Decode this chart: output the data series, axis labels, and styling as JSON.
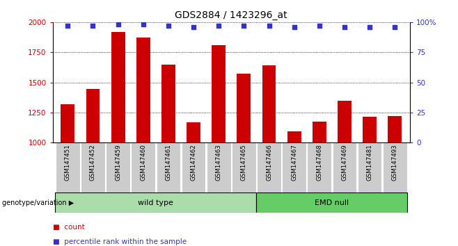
{
  "title": "GDS2884 / 1423296_at",
  "samples": [
    "GSM147451",
    "GSM147452",
    "GSM147459",
    "GSM147460",
    "GSM147461",
    "GSM147462",
    "GSM147463",
    "GSM147465",
    "GSM147466",
    "GSM147467",
    "GSM147468",
    "GSM147469",
    "GSM147481",
    "GSM147493"
  ],
  "counts": [
    1320,
    1445,
    1920,
    1870,
    1650,
    1170,
    1810,
    1575,
    1640,
    1095,
    1175,
    1345,
    1215,
    1220
  ],
  "percentile_ranks": [
    97,
    97,
    98,
    98,
    97,
    96,
    97,
    97,
    97,
    96,
    97,
    96,
    96,
    96
  ],
  "bar_color": "#cc0000",
  "dot_color": "#3333cc",
  "ylim_left": [
    1000,
    2000
  ],
  "ylim_right": [
    0,
    100
  ],
  "yticks_left": [
    1000,
    1250,
    1500,
    1750,
    2000
  ],
  "yticks_right": [
    0,
    25,
    50,
    75,
    100
  ],
  "wild_type_count": 8,
  "emd_null_count": 6,
  "wild_type_label": "wild type",
  "emd_null_label": "EMD null",
  "genotype_label": "genotype/variation",
  "legend_count_label": "count",
  "legend_percentile_label": "percentile rank within the sample",
  "wild_type_color": "#aaddaa",
  "emd_null_color": "#66cc66",
  "tick_area_color": "#cccccc",
  "bg_color": "#ffffff",
  "title_fontsize": 10,
  "tick_fontsize": 7.5
}
